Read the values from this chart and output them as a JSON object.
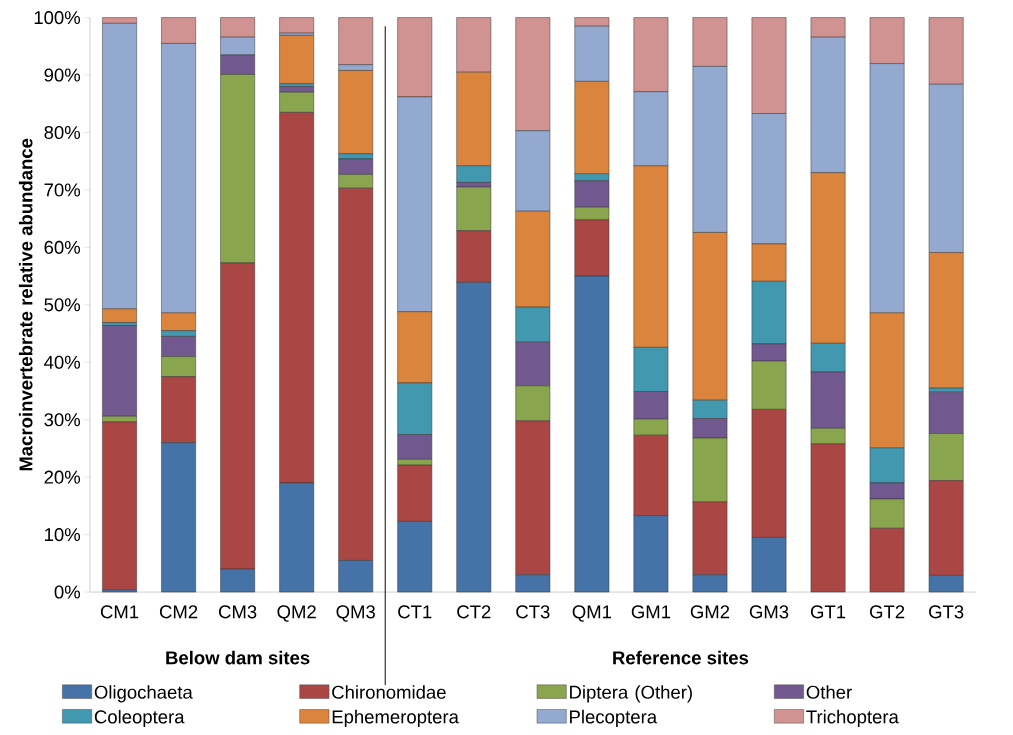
{
  "chart_data": {
    "type": "bar",
    "stacked": true,
    "ylabel": "Macroinvertebrate relative abundance",
    "categories": [
      "CM1",
      "CM2",
      "CM3",
      "QM2",
      "QM3",
      "CT1",
      "CT2",
      "CT3",
      "QM1",
      "GM1",
      "GM2",
      "GM3",
      "GT1",
      "GT2",
      "GT3"
    ],
    "series": [
      {
        "name": "Oligochaeta",
        "color": "#4572a7",
        "values": [
          0.4,
          26.0,
          4.0,
          19.0,
          5.5,
          12.3,
          53.9,
          3.0,
          55.0,
          13.3,
          3.0,
          9.5,
          0,
          0,
          2.9
        ]
      },
      {
        "name": "Chironomidae",
        "color": "#aa4643",
        "values": [
          29.2,
          11.5,
          53.3,
          64.5,
          64.8,
          9.8,
          9.0,
          26.8,
          9.8,
          14.0,
          12.7,
          22.3,
          25.8,
          11.1,
          16.5
        ]
      },
      {
        "name": "Diptera (Other)",
        "color": "#89a54e",
        "values": [
          1.0,
          3.5,
          32.8,
          3.5,
          2.4,
          1.0,
          7.6,
          6.1,
          2.2,
          2.8,
          11.1,
          8.4,
          2.7,
          5.1,
          8.2
        ]
      },
      {
        "name": "Other",
        "color": "#71588f",
        "values": [
          15.8,
          3.5,
          3.4,
          1.0,
          2.7,
          4.3,
          0.8,
          7.6,
          4.6,
          4.8,
          3.4,
          3.0,
          9.8,
          2.8,
          7.2
        ]
      },
      {
        "name": "Coleoptera",
        "color": "#4198af",
        "values": [
          0.5,
          1.0,
          0,
          0.5,
          0.9,
          9.0,
          2.9,
          6.1,
          1.2,
          7.7,
          3.2,
          10.9,
          5.0,
          6.1,
          0.7
        ]
      },
      {
        "name": "Ephemeroptera",
        "color": "#db843d",
        "values": [
          2.4,
          3.1,
          0,
          8.4,
          14.5,
          12.4,
          16.3,
          16.7,
          16.1,
          31.6,
          29.2,
          6.5,
          29.7,
          23.5,
          23.6
        ]
      },
      {
        "name": "Plecoptera",
        "color": "#93a9cf",
        "values": [
          49.7,
          46.9,
          3.1,
          0.4,
          1.0,
          37.4,
          0,
          14.0,
          9.6,
          12.9,
          28.9,
          22.7,
          23.6,
          43.4,
          29.3
        ]
      },
      {
        "name": "Trichoptera",
        "color": "#d19392",
        "values": [
          1.0,
          4.5,
          3.4,
          2.7,
          8.2,
          13.8,
          9.5,
          19.7,
          1.5,
          12.9,
          8.5,
          16.7,
          3.4,
          8.0,
          11.6
        ]
      }
    ],
    "ylim": [
      0,
      100
    ],
    "yticks": [
      {
        "value": 0,
        "label": "0%"
      },
      {
        "value": 10,
        "label": "10%"
      },
      {
        "value": 20,
        "label": "20%"
      },
      {
        "value": 30,
        "label": "30%"
      },
      {
        "value": 40,
        "label": "40%"
      },
      {
        "value": 50,
        "label": "50%"
      },
      {
        "value": 60,
        "label": "60%"
      },
      {
        "value": 70,
        "label": "70%"
      },
      {
        "value": 80,
        "label": "80%"
      },
      {
        "value": 90,
        "label": "90%"
      },
      {
        "value": 100,
        "label": "100%"
      }
    ],
    "annotations": [
      "Below dam sites",
      "Reference sites"
    ],
    "grid": false,
    "legend": "bottom"
  }
}
